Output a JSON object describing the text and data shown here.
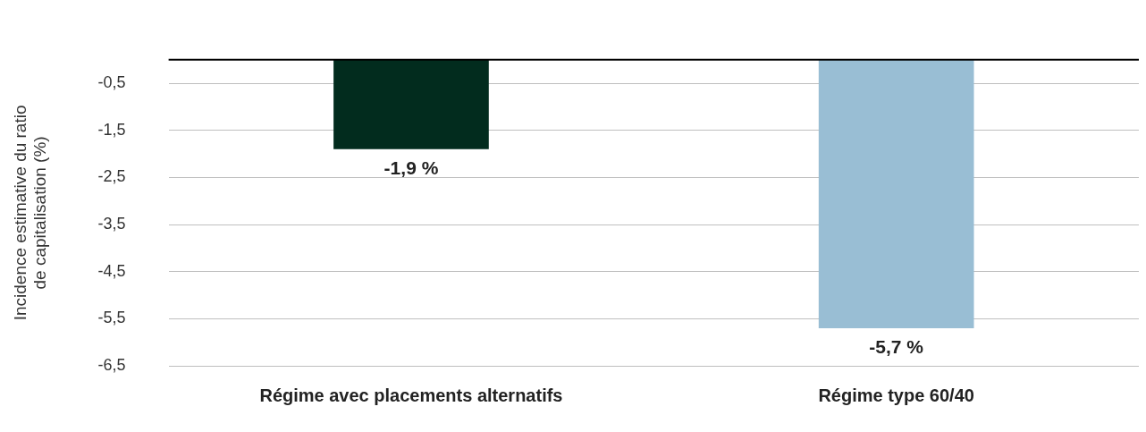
{
  "chart_data": {
    "type": "bar",
    "ylabel": "Incidence estimative du ratio de capitalisation (%)",
    "categories": [
      "Régime avec placements alternatifs",
      "Régime type 60/40"
    ],
    "values": [
      -1.9,
      -5.7
    ],
    "colors": [
      "#022c1e",
      "#99bed4"
    ],
    "value_labels": [
      "-1,9 %",
      "-5,7 %"
    ],
    "ylim": [
      -6.5,
      0
    ],
    "yticks": [
      {
        "value": -0.5,
        "label": "-0,5"
      },
      {
        "value": -1.5,
        "label": "-1,5"
      },
      {
        "value": -2.5,
        "label": "-2,5"
      },
      {
        "value": -3.5,
        "label": "-3,5"
      },
      {
        "value": -4.5,
        "label": "-4,5"
      },
      {
        "value": -5.5,
        "label": "-5,5"
      },
      {
        "value": -6.5,
        "label": "-6,5"
      }
    ],
    "grid": "y",
    "legend": false
  }
}
